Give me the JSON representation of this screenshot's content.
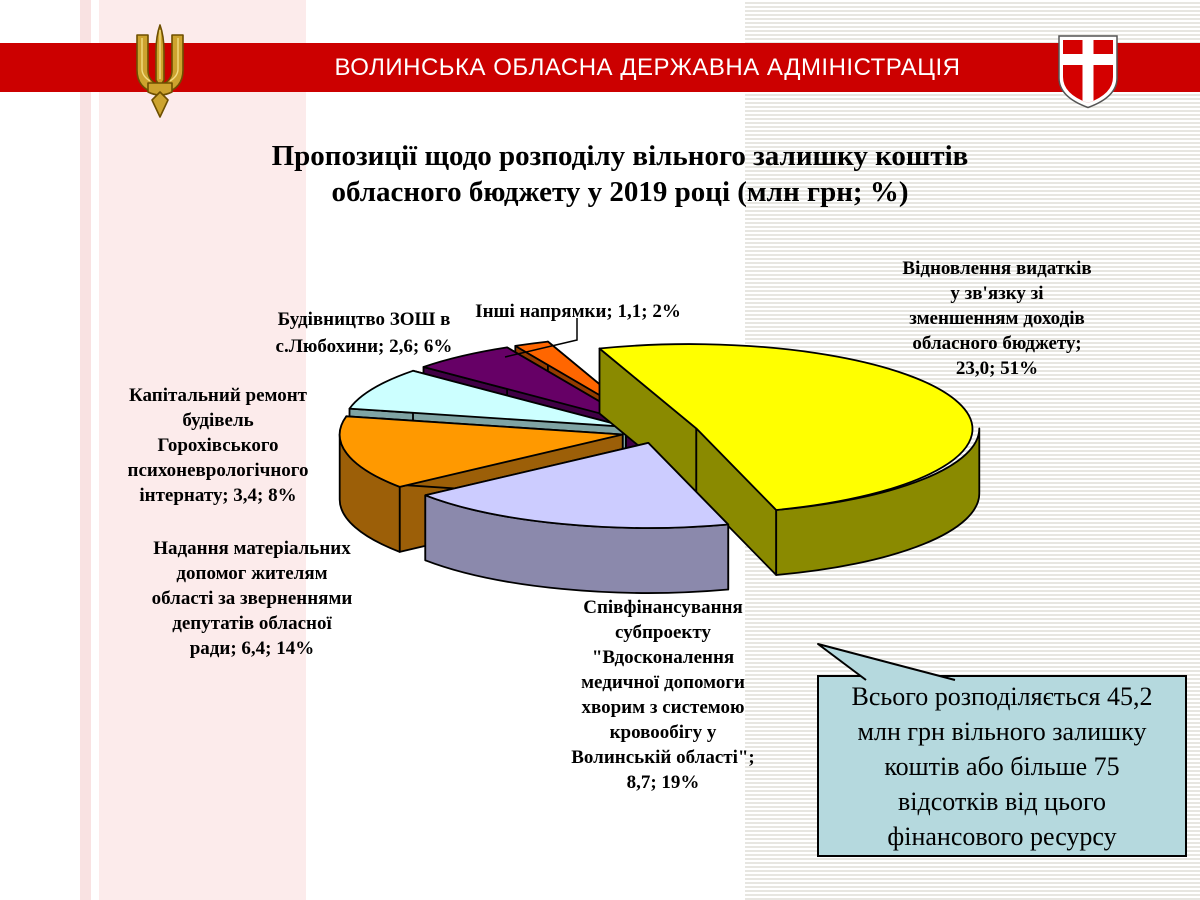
{
  "header": {
    "title": "ВОЛИНСЬКА ОБЛАСНА ДЕРЖАВНА АДМІНІСТРАЦІЯ"
  },
  "title": "Пропозиції щодо розподілу вільного залишку коштів\nобласного бюджету у 2019 році (млн грн; %)",
  "pie_labels": [
    "Відновлення видатків\nу зв'язку зі\nзменшенням доходів\nобласного бюджету;\n23,0; 51%",
    "Співфінансування\nсубпроекту\n\"Вдосконалення\nмедичної допомоги\nхворим з системою\nкровообігу у\nВолинській області\";\n8,7; 19%",
    "Надання матеріальних\nдопомог жителям\nобласті за зверненнями\nдепутатів обласної\nради; 6,4; 14%",
    "Капітальний ремонт\nбудівель\nГорохівського\nпсихоневрологічного\nінтернату; 3,4; 8%",
    "Будівництво ЗОШ в\nс.Любохини; 2,6; 6%",
    "Інші напрямки; 1,1; 2%"
  ],
  "callout": {
    "text": "Всього розподіляється 45,2\nмлн грн вільного залишку\nкоштів або більше 75\nвідсотків від цього\nфінансового ресурсу"
  },
  "chart_data": {
    "type": "pie",
    "title": "Пропозиції щодо розподілу вільного залишку коштів обласного бюджету у 2019 році",
    "units": "млн грн; %",
    "style": "3d-exploded",
    "legend_position": "none",
    "labels_position": "outside",
    "start_angle_deg": -20,
    "direction": "clockwise",
    "slices": [
      {
        "name": "Відновлення видатків у зв'язку зі зменшенням доходів обласного бюджету",
        "value": 23.0,
        "percent": 51,
        "color": "#ffff00",
        "side_color": "#8a8a00"
      },
      {
        "name": "Співфінансування субпроекту \"Вдосконалення медичної допомоги хворим з системою кровообігу у Волинській області\"",
        "value": 8.7,
        "percent": 19,
        "color": "#ccccff",
        "side_color": "#8b89ac"
      },
      {
        "name": "Надання матеріальних допомог жителям області за зверненнями депутатів обласної ради",
        "value": 6.4,
        "percent": 14,
        "color": "#ff9900",
        "side_color": "#9c5f08"
      },
      {
        "name": "Капітальний ремонт будівель Горохівського психоневрологічного інтернату",
        "value": 3.4,
        "percent": 8,
        "color": "#ccffff",
        "side_color": "#7fa4a4"
      },
      {
        "name": "Будівництво ЗОШ в с.Любохини",
        "value": 2.6,
        "percent": 6,
        "color": "#660066",
        "side_color": "#400045"
      },
      {
        "name": "Інші напрямки",
        "value": 1.1,
        "percent": 2,
        "color": "#ff6600",
        "side_color": "#943c00"
      }
    ]
  }
}
